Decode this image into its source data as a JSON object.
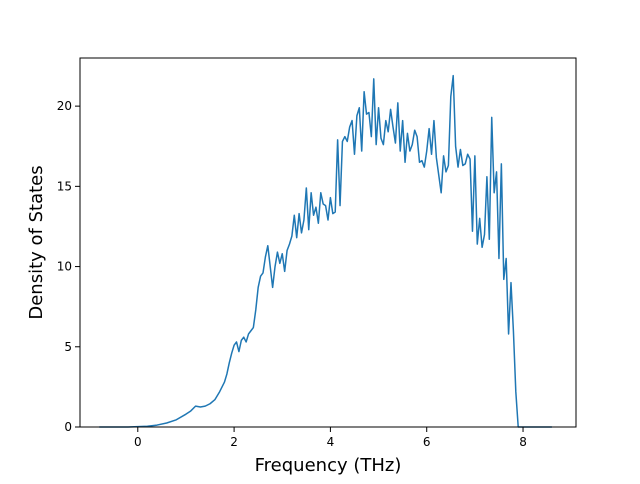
{
  "chart_data": {
    "type": "line",
    "title": "",
    "xlabel": "Frequency (THz)",
    "ylabel": "Density of States",
    "xlim": [
      -1.2,
      9.1
    ],
    "ylim": [
      0,
      23
    ],
    "xticks": [
      0,
      2,
      4,
      6,
      8
    ],
    "yticks": [
      0,
      5,
      10,
      15,
      20
    ],
    "xtick_labels": [
      "0",
      "2",
      "4",
      "6",
      "8"
    ],
    "ytick_labels": [
      "0",
      "5",
      "10",
      "15",
      "20"
    ],
    "grid": false,
    "legend": "none",
    "series": [
      {
        "color": "#1f77b4",
        "x": [
          -0.8,
          -0.2,
          0.0,
          0.2,
          0.4,
          0.6,
          0.8,
          1.0,
          1.1,
          1.2,
          1.3,
          1.4,
          1.5,
          1.6,
          1.7,
          1.8,
          1.85,
          1.9,
          1.95,
          2.0,
          2.05,
          2.1,
          2.15,
          2.2,
          2.25,
          2.3,
          2.35,
          2.4,
          2.45,
          2.5,
          2.55,
          2.6,
          2.65,
          2.7,
          2.75,
          2.8,
          2.85,
          2.9,
          2.95,
          3.0,
          3.05,
          3.1,
          3.15,
          3.2,
          3.25,
          3.3,
          3.35,
          3.4,
          3.45,
          3.5,
          3.55,
          3.6,
          3.65,
          3.7,
          3.75,
          3.8,
          3.85,
          3.9,
          3.95,
          4.0,
          4.05,
          4.1,
          4.15,
          4.2,
          4.25,
          4.3,
          4.35,
          4.4,
          4.45,
          4.5,
          4.55,
          4.6,
          4.65,
          4.7,
          4.75,
          4.8,
          4.85,
          4.9,
          4.95,
          5.0,
          5.05,
          5.1,
          5.15,
          5.2,
          5.25,
          5.3,
          5.35,
          5.4,
          5.45,
          5.5,
          5.55,
          5.6,
          5.65,
          5.7,
          5.75,
          5.8,
          5.85,
          5.9,
          5.95,
          6.0,
          6.05,
          6.1,
          6.15,
          6.2,
          6.25,
          6.3,
          6.35,
          6.4,
          6.45,
          6.5,
          6.55,
          6.6,
          6.65,
          6.7,
          6.75,
          6.8,
          6.85,
          6.9,
          6.95,
          7.0,
          7.05,
          7.1,
          7.15,
          7.2,
          7.25,
          7.3,
          7.35,
          7.4,
          7.45,
          7.5,
          7.55,
          7.6,
          7.65,
          7.7,
          7.75,
          7.8,
          7.85,
          7.9,
          8.0,
          8.2,
          8.4,
          8.6
        ],
        "y": [
          0.0,
          0.0,
          0.02,
          0.05,
          0.12,
          0.25,
          0.45,
          0.8,
          1.0,
          1.3,
          1.25,
          1.3,
          1.45,
          1.7,
          2.2,
          2.8,
          3.3,
          4.0,
          4.6,
          5.1,
          5.3,
          4.7,
          5.4,
          5.6,
          5.3,
          5.8,
          6.0,
          6.2,
          7.3,
          8.7,
          9.4,
          9.6,
          10.6,
          11.3,
          10.0,
          8.7,
          10.0,
          10.9,
          10.2,
          10.8,
          9.7,
          11.0,
          11.4,
          11.9,
          13.2,
          11.8,
          13.3,
          12.1,
          12.9,
          14.9,
          12.3,
          14.6,
          13.2,
          13.7,
          12.7,
          14.6,
          13.9,
          13.8,
          12.9,
          14.3,
          13.3,
          13.4,
          17.9,
          13.8,
          17.8,
          18.1,
          17.8,
          18.7,
          19.1,
          17.0,
          19.4,
          19.9,
          17.2,
          20.9,
          19.5,
          19.6,
          18.1,
          21.7,
          17.6,
          19.9,
          18.0,
          17.6,
          19.1,
          18.4,
          19.8,
          18.7,
          17.7,
          20.2,
          17.2,
          19.1,
          16.5,
          18.3,
          17.2,
          17.6,
          18.5,
          18.1,
          16.5,
          16.6,
          16.2,
          17.2,
          18.6,
          17.0,
          19.1,
          16.8,
          15.7,
          14.6,
          16.9,
          15.9,
          16.3,
          20.6,
          21.9,
          17.5,
          16.2,
          17.3,
          16.3,
          16.4,
          17.0,
          16.7,
          12.2,
          16.9,
          11.4,
          13.0,
          11.2,
          12.0,
          15.6,
          11.7,
          19.3,
          14.6,
          15.9,
          10.5,
          16.4,
          9.2,
          10.5,
          5.8,
          9.0,
          6.0,
          2.2,
          0.0,
          0.0,
          0.0,
          0.0,
          0.0
        ]
      }
    ]
  }
}
